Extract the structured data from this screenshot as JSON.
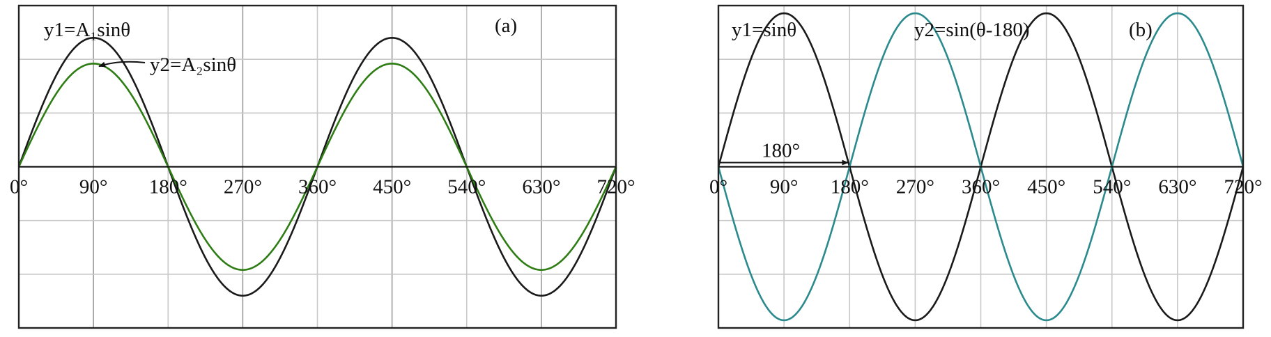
{
  "chart_data": [
    {
      "type": "line",
      "panel_label": "(a)",
      "xlim": [
        0,
        720
      ],
      "ylim": [
        -1.25,
        1.25
      ],
      "x_ticks": [
        0,
        90,
        180,
        270,
        360,
        450,
        540,
        630,
        720
      ],
      "x_tick_labels": [
        "0°",
        "90°",
        "180°",
        "270°",
        "360°",
        "450°",
        "540°",
        "630°",
        "720°"
      ],
      "grid": true,
      "series": [
        {
          "name": "y1=A₁sinθ",
          "amplitude": 1.0,
          "phase_deg": 0,
          "color": "#1a1a1a"
        },
        {
          "name": "y2=A₂sinθ",
          "amplitude": 0.8,
          "phase_deg": 0,
          "color": "#2e7d14"
        }
      ]
    },
    {
      "type": "line",
      "panel_label": "(b)",
      "xlim": [
        0,
        720
      ],
      "ylim": [
        -1.05,
        1.05
      ],
      "x_ticks": [
        0,
        90,
        180,
        270,
        360,
        450,
        540,
        630,
        720
      ],
      "x_tick_labels": [
        "0°",
        "90°",
        "180°",
        "270°",
        "360°",
        "450°",
        "540°",
        "630°",
        "720°"
      ],
      "grid": true,
      "series": [
        {
          "name": "y1=sinθ",
          "amplitude": 1.0,
          "phase_deg": 0,
          "color": "#1a1a1a"
        },
        {
          "name": "y2=sin(θ-180)",
          "amplitude": 1.0,
          "phase_deg": -180,
          "color": "#2a8a8e"
        }
      ],
      "annotations": [
        {
          "text": "180°"
        }
      ]
    }
  ]
}
